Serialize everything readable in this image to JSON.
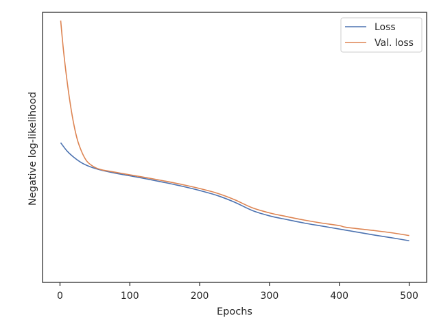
{
  "chart_data": {
    "type": "line",
    "title": "",
    "xlabel": "Epochs",
    "ylabel": "Negative log-likelihood",
    "xlim": [
      -25,
      525
    ],
    "ylim": [
      0,
      1
    ],
    "x_ticks": [
      "0",
      "100",
      "200",
      "300",
      "400",
      "500"
    ],
    "y_ticks": [],
    "grid": false,
    "legend_position": "top-right",
    "series": [
      {
        "name": "Loss",
        "color": "#4c72b0",
        "x": [
          1,
          10,
          20,
          30,
          40,
          50,
          60,
          80,
          100,
          125,
          150,
          175,
          200,
          225,
          250,
          275,
          300,
          325,
          350,
          375,
          400,
          425,
          450,
          475,
          500
        ],
        "y": [
          0.509,
          0.476,
          0.45,
          0.43,
          0.416,
          0.406,
          0.398,
          0.386,
          0.376,
          0.363,
          0.349,
          0.334,
          0.317,
          0.297,
          0.27,
          0.237,
          0.215,
          0.2,
          0.186,
          0.174,
          0.162,
          0.15,
          0.138,
          0.127,
          0.115
        ]
      },
      {
        "name": "Val. loss",
        "color": "#dd8452",
        "x": [
          1,
          5,
          10,
          15,
          20,
          25,
          30,
          35,
          40,
          50,
          60,
          80,
          100,
          125,
          150,
          175,
          200,
          225,
          250,
          275,
          300,
          325,
          350,
          375,
          400,
          410,
          450,
          475,
          500
        ],
        "y": [
          1.0,
          0.88,
          0.76,
          0.66,
          0.58,
          0.52,
          0.48,
          0.45,
          0.43,
          0.41,
          0.4,
          0.39,
          0.38,
          0.368,
          0.355,
          0.341,
          0.325,
          0.306,
          0.28,
          0.248,
          0.227,
          0.212,
          0.198,
          0.186,
          0.176,
          0.169,
          0.156,
          0.147,
          0.136
        ]
      }
    ]
  }
}
